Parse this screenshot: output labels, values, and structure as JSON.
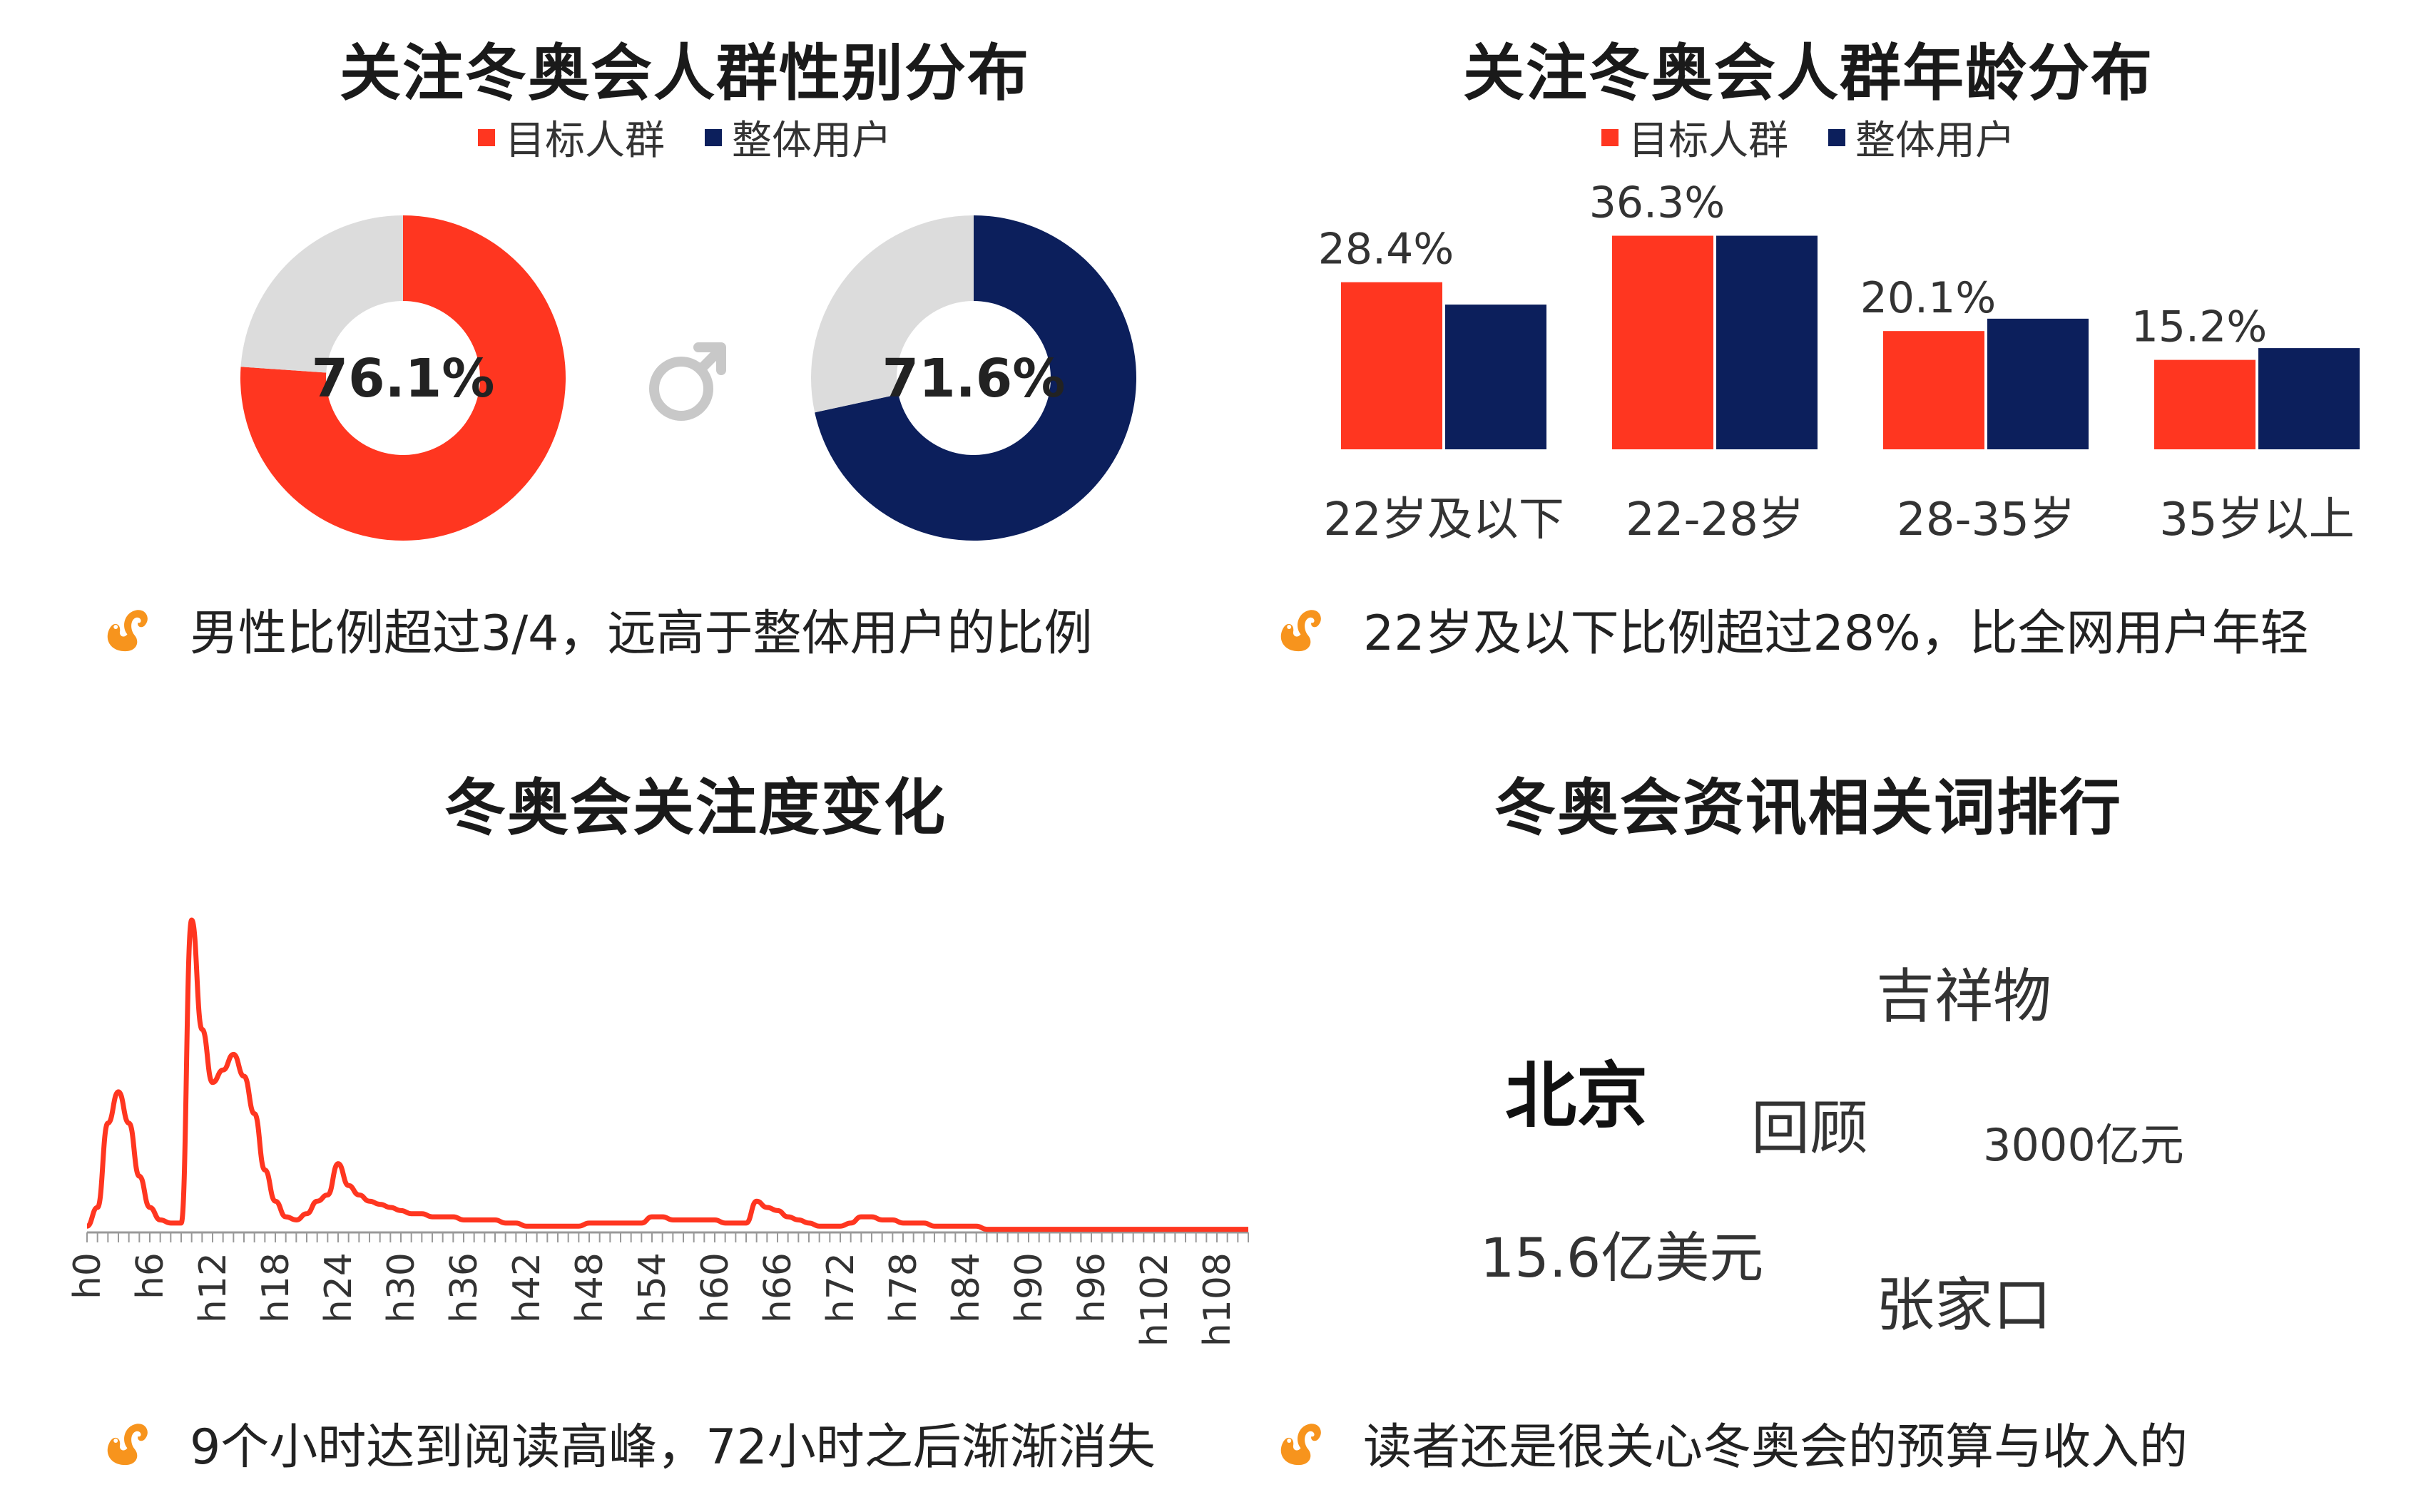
{
  "colors": {
    "target": "#ff3620",
    "overall": "#0c1f5c",
    "remainder": "#dcdcdc",
    "line": "#ff3620",
    "mascot": "#f7941d",
    "male_symbol": "#c8c8c8"
  },
  "icons": {
    "mascot": "squirrel-mascot-icon",
    "male": "male-symbol-icon"
  },
  "gender": {
    "title": "关注冬奥会人群性别分布",
    "legend": [
      "目标人群",
      "整体用户"
    ],
    "note": "男性比例超过3/4，远高于整体用户的比例"
  },
  "age": {
    "title": "关注冬奥会人群年龄分布",
    "legend": [
      "目标人群",
      "整体用户"
    ],
    "note": "22岁及以下比例超过28%，比全网用户年轻"
  },
  "trend": {
    "title": "冬奥会关注度变化",
    "note": "9个小时达到阅读高峰，72小时之后渐渐消失"
  },
  "words": {
    "title": "冬奥会资讯相关词排行",
    "note": "读者还是很关心冬奥会的预算与收入的",
    "items": [
      {
        "text": "吉祥物"
      },
      {
        "text": "北京"
      },
      {
        "text": "回顾"
      },
      {
        "text": "3000亿元"
      },
      {
        "text": "15.6亿美元"
      },
      {
        "text": "张家口"
      }
    ]
  },
  "chart_data": [
    {
      "type": "pie",
      "title": "关注冬奥会人群性别分布",
      "series": [
        {
          "name": "目标人群",
          "values": [
            76.1,
            23.9
          ],
          "label": "76.1%"
        },
        {
          "name": "整体用户",
          "values": [
            71.6,
            28.4
          ],
          "label": "71.6%"
        }
      ],
      "legend": [
        "目标人群",
        "整体用户"
      ],
      "legend_position": "top"
    },
    {
      "type": "bar",
      "title": "关注冬奥会人群年龄分布",
      "categories": [
        "22岁及以下",
        "22-28岁",
        "28-35岁",
        "35岁以上"
      ],
      "series": [
        {
          "name": "目标人群",
          "values": [
            28.4,
            36.3,
            20.1,
            15.2
          ],
          "labels": [
            "28.4%",
            "36.3%",
            "20.1%",
            "15.2%"
          ]
        },
        {
          "name": "整体用户",
          "values": [
            24.6,
            36.3,
            22.2,
            17.2
          ]
        }
      ],
      "ylim": [
        0,
        40
      ],
      "legend_position": "top"
    },
    {
      "type": "line",
      "title": "冬奥会关注度变化",
      "x": [
        "h0",
        "h1",
        "h2",
        "h3",
        "h4",
        "h5",
        "h6",
        "h7",
        "h8",
        "h9",
        "h10",
        "h11",
        "h12",
        "h13",
        "h14",
        "h15",
        "h16",
        "h17",
        "h18",
        "h19",
        "h20",
        "h21",
        "h22",
        "h23",
        "h24",
        "h25",
        "h26",
        "h27",
        "h28",
        "h29",
        "h30",
        "h31",
        "h32",
        "h33",
        "h34",
        "h35",
        "h36",
        "h37",
        "h38",
        "h39",
        "h40",
        "h41",
        "h42",
        "h43",
        "h44",
        "h45",
        "h46",
        "h47",
        "h48",
        "h49",
        "h50",
        "h51",
        "h52",
        "h53",
        "h54",
        "h55",
        "h56",
        "h57",
        "h58",
        "h59",
        "h60",
        "h61",
        "h62",
        "h63",
        "h64",
        "h65",
        "h66",
        "h67",
        "h68",
        "h69",
        "h70",
        "h71",
        "h72",
        "h73",
        "h74",
        "h75",
        "h76",
        "h77",
        "h78",
        "h79",
        "h80",
        "h81",
        "h82",
        "h83",
        "h84",
        "h85",
        "h86",
        "h87",
        "h88",
        "h89",
        "h90",
        "h91",
        "h92",
        "h93",
        "h94",
        "h95",
        "h96",
        "h97",
        "h98",
        "h99",
        "h100",
        "h101",
        "h102",
        "h103",
        "h104",
        "h105",
        "h106",
        "h107",
        "h108",
        "h109",
        "h110",
        "h111"
      ],
      "tick_labels": [
        "h0",
        "h6",
        "h12",
        "h18",
        "h24",
        "h30",
        "h36",
        "h42",
        "h48",
        "h54",
        "h60",
        "h66",
        "h72",
        "h78",
        "h84",
        "h90",
        "h96",
        "h102",
        "h108"
      ],
      "series": [
        {
          "name": "",
          "values": [
            2,
            8,
            35,
            45,
            35,
            18,
            8,
            4,
            3,
            3,
            100,
            65,
            48,
            52,
            57,
            50,
            38,
            20,
            10,
            5,
            4,
            6,
            10,
            12,
            22,
            15,
            12,
            10,
            9,
            8,
            7,
            6,
            6,
            5,
            5,
            5,
            4,
            4,
            4,
            4,
            3,
            3,
            2,
            2,
            2,
            2,
            2,
            2,
            3,
            3,
            3,
            3,
            3,
            3,
            5,
            5,
            4,
            4,
            4,
            4,
            4,
            3,
            3,
            3,
            10,
            8,
            7,
            5,
            4,
            3,
            2,
            2,
            2,
            3,
            5,
            5,
            4,
            4,
            3,
            3,
            3,
            2,
            2,
            2,
            2,
            2,
            1,
            1,
            1,
            1,
            1,
            1,
            1,
            1,
            1,
            1,
            1,
            1,
            1,
            1,
            1,
            1,
            1,
            1,
            1,
            1,
            1,
            1,
            1,
            1,
            1,
            1
          ]
        }
      ],
      "ylim": [
        0,
        100
      ]
    }
  ]
}
